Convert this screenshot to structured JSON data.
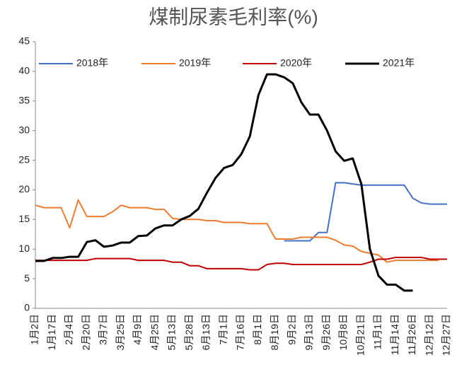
{
  "chart_data": {
    "type": "line",
    "title": "煤制尿素毛利率(%)",
    "categories": [
      "1月2日",
      null,
      "1月17日",
      null,
      "2月4日",
      null,
      "2月20日",
      null,
      "3月7日",
      null,
      "3月25日",
      null,
      "4月9日",
      null,
      "4月25日",
      null,
      "5月13日",
      null,
      "5月28日",
      null,
      "6月13日",
      null,
      "7月1日",
      null,
      "7月16日",
      null,
      "8月1日",
      null,
      "8月19日",
      null,
      "9月2日",
      null,
      "9月13日",
      null,
      "9月26日",
      null,
      "10月8日",
      null,
      "10月21日",
      null,
      "11月1日",
      null,
      "11月14日",
      null,
      "11月26日",
      null,
      "12月12日",
      null,
      "12月27日"
    ],
    "series": [
      {
        "name": "2018年",
        "color": "#4472c4",
        "values": [
          null,
          null,
          null,
          null,
          null,
          null,
          null,
          null,
          null,
          null,
          null,
          null,
          null,
          null,
          null,
          null,
          null,
          null,
          null,
          null,
          null,
          null,
          null,
          null,
          null,
          null,
          null,
          null,
          null,
          11.4,
          11.4,
          11.4,
          11.4,
          12.8,
          12.8,
          21.2,
          21.2,
          21,
          20.8,
          20.8,
          20.8,
          20.8,
          20.8,
          20.8,
          18.6,
          17.8,
          17.6,
          17.6,
          17.6
        ]
      },
      {
        "name": "2019年",
        "color": "#ed7d31",
        "values": [
          17.4,
          17,
          17,
          17,
          13.6,
          18.3,
          15.5,
          15.5,
          15.5,
          16.3,
          17.4,
          17,
          17,
          17,
          16.7,
          16.7,
          15.2,
          15,
          15,
          15,
          14.8,
          14.8,
          14.5,
          14.5,
          14.5,
          14.3,
          14.3,
          14.3,
          11.7,
          11.7,
          11.7,
          12,
          12,
          12,
          12,
          11.5,
          10.7,
          10.5,
          9.6,
          9.3,
          9,
          7.8,
          8.1,
          8.1,
          8.1,
          8.1,
          8.1,
          8.1,
          null
        ]
      },
      {
        "name": "2020年",
        "color": "#c00000",
        "values": [
          8.1,
          8.1,
          8.1,
          8.1,
          8.1,
          8.1,
          8.1,
          8.4,
          8.4,
          8.4,
          8.4,
          8.4,
          8.1,
          8.1,
          8.1,
          8.1,
          7.8,
          7.8,
          7.2,
          7.2,
          6.7,
          6.7,
          6.7,
          6.7,
          6.7,
          6.5,
          6.5,
          7.4,
          7.6,
          7.6,
          7.4,
          7.4,
          7.4,
          7.4,
          7.4,
          7.4,
          7.4,
          7.4,
          7.4,
          7.8,
          8.3,
          8.3,
          8.6,
          8.6,
          8.6,
          8.6,
          8.3,
          8.3,
          8.3
        ]
      },
      {
        "name": "2021年",
        "color": "#000000",
        "values": [
          8,
          8,
          8.5,
          8.5,
          8.7,
          8.7,
          11.2,
          11.5,
          10.4,
          10.6,
          11.1,
          11.1,
          12.2,
          12.3,
          13.5,
          14,
          14,
          15,
          15.6,
          16.8,
          19.5,
          22,
          23.7,
          24.2,
          26,
          29,
          36,
          39.5,
          39.5,
          39,
          38,
          34.8,
          32.7,
          32.7,
          30,
          26.5,
          24.9,
          25.3,
          21,
          10,
          5.5,
          4,
          4,
          3,
          3,
          null,
          null,
          null,
          null
        ]
      }
    ],
    "ylim": [
      0,
      45
    ],
    "yticks": [
      0,
      5,
      10,
      15,
      20,
      25,
      30,
      35,
      40,
      45
    ]
  }
}
